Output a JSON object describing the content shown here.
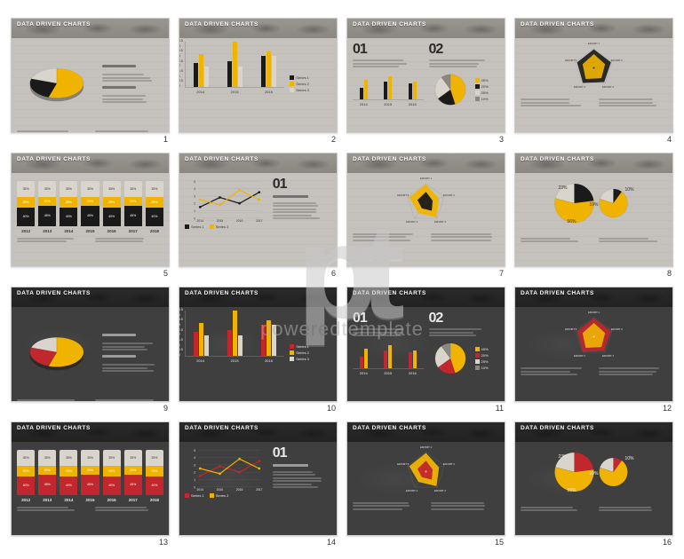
{
  "page_title": "DATA DRIVEN CHARTS",
  "watermark": {
    "logo": "pt",
    "text": "poweredtemplate"
  },
  "palette": {
    "light_accent1": "#f0b400",
    "light_accent2": "#1a1a1a",
    "light_accent3": "#d9d4cc",
    "dark_accent1": "#f0b400",
    "dark_accent2": "#c1272d",
    "dark_accent3": "#d9d4cc",
    "light_text": "#333333",
    "dark_text": "#e8e8e8"
  },
  "slides": [
    {
      "n": 1,
      "theme": "light",
      "type": "pie3d",
      "pie": {
        "slices": [
          {
            "value": 55,
            "color": "#f0b400"
          },
          {
            "value": 25,
            "color": "#1a1a1a"
          },
          {
            "value": 20,
            "color": "#d9d4cc"
          }
        ]
      },
      "headings": [
        "LOREM IPSUM",
        "LOREM IPSUM"
      ]
    },
    {
      "n": 2,
      "theme": "light",
      "type": "grouped-bar",
      "y": {
        "min": 0,
        "max": 4.5,
        "step": 0.5
      },
      "x": [
        "2014",
        "2015",
        "2016"
      ],
      "series": [
        {
          "name": "Series 1",
          "color": "#1a1a1a",
          "values": [
            2.3,
            2.5,
            3.0
          ]
        },
        {
          "name": "Series 2",
          "color": "#f0b400",
          "values": [
            3.2,
            4.4,
            3.5
          ]
        },
        {
          "name": "Series 3",
          "color": "#d9d4cc",
          "values": [
            2.0,
            2.0,
            3.0
          ]
        }
      ]
    },
    {
      "n": 3,
      "theme": "light",
      "type": "combo-bar-pie",
      "nums": [
        "01",
        "02"
      ],
      "bars": {
        "x": [
          "2014",
          "2015",
          "2016"
        ],
        "series": [
          {
            "color": "#1a1a1a",
            "values": [
              2.0,
              3.2,
              2.8
            ]
          },
          {
            "color": "#f0b400",
            "values": [
              3.5,
              4.0,
              3.2
            ]
          }
        ],
        "ymax": 5
      },
      "pie": {
        "slices": [
          {
            "value": 45,
            "color": "#f0b400"
          },
          {
            "value": 20,
            "color": "#1a1a1a"
          },
          {
            "value": 25,
            "color": "#d9d4cc"
          },
          {
            "value": 10,
            "color": "#8c8880"
          }
        ]
      },
      "legend": [
        "45%",
        "20%",
        "25%",
        "10%"
      ]
    },
    {
      "n": 4,
      "theme": "light",
      "type": "radar",
      "axes": [
        "EFFORT 1",
        "EFFORT 2",
        "EFFORT 3",
        "EFFORT 4",
        "EFFORT 5"
      ],
      "layers": [
        {
          "color": "#1a1a1a",
          "r": [
            0.95,
            0.92,
            0.9,
            0.95,
            0.9
          ]
        },
        {
          "color": "#f0b400",
          "r": [
            0.7,
            0.6,
            0.65,
            0.7,
            0.6
          ]
        }
      ]
    },
    {
      "n": 5,
      "theme": "light",
      "type": "stacked-bar",
      "x": [
        "2012",
        "2013",
        "2014",
        "2015",
        "2016",
        "2017",
        "2018"
      ],
      "layers": [
        {
          "color": "#1a1a1a",
          "values": [
            40,
            45,
            40,
            45,
            40,
            45,
            40
          ],
          "label_suffix": "%"
        },
        {
          "color": "#f0b400",
          "values": [
            25,
            20,
            25,
            20,
            25,
            20,
            25
          ],
          "label_suffix": "%"
        },
        {
          "color": "#d9d4cc",
          "values": [
            35,
            35,
            35,
            35,
            35,
            35,
            35
          ],
          "label_suffix": "%"
        }
      ]
    },
    {
      "n": 6,
      "theme": "light",
      "type": "line-plus-text",
      "num": "01",
      "y": {
        "min": 0,
        "max": 5,
        "step": 1
      },
      "x": [
        "2014",
        "2015",
        "2016",
        "2017"
      ],
      "series": [
        {
          "name": "Series 1",
          "color": "#1a1a1a",
          "values": [
            1.5,
            2.8,
            2.0,
            3.5
          ]
        },
        {
          "name": "Series 2",
          "color": "#f0b400",
          "values": [
            2.5,
            1.8,
            3.8,
            2.5
          ]
        }
      ]
    },
    {
      "n": 7,
      "theme": "light",
      "type": "radar-filled",
      "axes": [
        "EFFORT 1",
        "EFFORT 2",
        "EFFORT 3",
        "EFFORT 4",
        "EFFORT 5"
      ],
      "layers": [
        {
          "color": "#f0b400",
          "r": [
            0.95,
            0.7,
            0.92,
            0.65,
            0.9
          ]
        },
        {
          "color": "#1a1a1a",
          "r": [
            0.55,
            0.35,
            0.5,
            0.35,
            0.45
          ]
        }
      ]
    },
    {
      "n": 8,
      "theme": "light",
      "type": "venn-pie",
      "left": {
        "slices": [
          {
            "value": 23,
            "color": "#1a1a1a"
          },
          {
            "value": 56,
            "color": "#f0b400"
          },
          {
            "value": 21,
            "color": "#d9d4cc"
          }
        ],
        "labels": [
          "23%",
          "56%"
        ],
        "mid": "19%"
      },
      "right": {
        "slices": [
          {
            "value": 10,
            "color": "#1a1a1a"
          },
          {
            "value": 70,
            "color": "#f0b400"
          },
          {
            "value": 20,
            "color": "#d9d4cc"
          }
        ],
        "labels": [
          "10%"
        ]
      }
    },
    {
      "n": 9,
      "theme": "dark",
      "type": "pie3d",
      "pie": {
        "slices": [
          {
            "value": 55,
            "color": "#f0b400"
          },
          {
            "value": 25,
            "color": "#c1272d"
          },
          {
            "value": 20,
            "color": "#d9d4cc"
          }
        ]
      },
      "headings": [
        "LOREM IPSUM",
        "LOREM IPSUM"
      ]
    },
    {
      "n": 10,
      "theme": "dark",
      "type": "grouped-bar",
      "y": {
        "min": 0,
        "max": 4.5,
        "step": 0.5
      },
      "x": [
        "2014",
        "2015",
        "2016"
      ],
      "series": [
        {
          "name": "Series 1",
          "color": "#c1272d",
          "values": [
            2.3,
            2.5,
            3.0
          ]
        },
        {
          "name": "Series 2",
          "color": "#f0b400",
          "values": [
            3.2,
            4.4,
            3.5
          ]
        },
        {
          "name": "Series 3",
          "color": "#d9d4cc",
          "values": [
            2.0,
            2.0,
            3.0
          ]
        }
      ]
    },
    {
      "n": 11,
      "theme": "dark",
      "type": "combo-bar-pie",
      "nums": [
        "01",
        "02"
      ],
      "bars": {
        "x": [
          "2014",
          "2015",
          "2016"
        ],
        "series": [
          {
            "color": "#c1272d",
            "values": [
              2.0,
              3.2,
              2.8
            ]
          },
          {
            "color": "#f0b400",
            "values": [
              3.5,
              4.0,
              3.2
            ]
          }
        ],
        "ymax": 5
      },
      "pie": {
        "slices": [
          {
            "value": 45,
            "color": "#f0b400"
          },
          {
            "value": 20,
            "color": "#c1272d"
          },
          {
            "value": 25,
            "color": "#d9d4cc"
          },
          {
            "value": 10,
            "color": "#8c8880"
          }
        ]
      },
      "legend": [
        "45%",
        "20%",
        "25%",
        "10%"
      ]
    },
    {
      "n": 12,
      "theme": "dark",
      "type": "radar",
      "axes": [
        "EFFORT 1",
        "EFFORT 2",
        "EFFORT 3",
        "EFFORT 4",
        "EFFORT 5"
      ],
      "layers": [
        {
          "color": "#c1272d",
          "r": [
            0.95,
            0.92,
            0.9,
            0.95,
            0.9
          ]
        },
        {
          "color": "#f0b400",
          "r": [
            0.7,
            0.6,
            0.65,
            0.7,
            0.6
          ]
        }
      ]
    },
    {
      "n": 13,
      "theme": "dark",
      "type": "stacked-bar",
      "x": [
        "2012",
        "2013",
        "2014",
        "2015",
        "2016",
        "2017",
        "2018"
      ],
      "layers": [
        {
          "color": "#c1272d",
          "values": [
            40,
            45,
            40,
            45,
            40,
            45,
            40
          ],
          "label_suffix": "%"
        },
        {
          "color": "#f0b400",
          "values": [
            25,
            20,
            25,
            20,
            25,
            20,
            25
          ],
          "label_suffix": "%"
        },
        {
          "color": "#d9d4cc",
          "values": [
            35,
            35,
            35,
            35,
            35,
            35,
            35
          ],
          "label_suffix": "%"
        }
      ]
    },
    {
      "n": 14,
      "theme": "dark",
      "type": "line-plus-text",
      "num": "01",
      "y": {
        "min": 0,
        "max": 5,
        "step": 1
      },
      "x": [
        "2014",
        "2015",
        "2016",
        "2017"
      ],
      "series": [
        {
          "name": "Series 1",
          "color": "#c1272d",
          "values": [
            1.5,
            2.8,
            2.0,
            3.5
          ]
        },
        {
          "name": "Series 2",
          "color": "#f0b400",
          "values": [
            2.5,
            1.8,
            3.8,
            2.5
          ]
        }
      ]
    },
    {
      "n": 15,
      "theme": "dark",
      "type": "radar-filled",
      "axes": [
        "EFFORT 1",
        "EFFORT 2",
        "EFFORT 3",
        "EFFORT 4",
        "EFFORT 5"
      ],
      "layers": [
        {
          "color": "#f0b400",
          "r": [
            0.95,
            0.7,
            0.92,
            0.65,
            0.9
          ]
        },
        {
          "color": "#c1272d",
          "r": [
            0.55,
            0.35,
            0.5,
            0.35,
            0.45
          ]
        }
      ]
    },
    {
      "n": 16,
      "theme": "dark",
      "type": "venn-pie",
      "left": {
        "slices": [
          {
            "value": 23,
            "color": "#c1272d"
          },
          {
            "value": 56,
            "color": "#f0b400"
          },
          {
            "value": 21,
            "color": "#d9d4cc"
          }
        ],
        "labels": [
          "23%",
          "56%"
        ],
        "mid": "19%"
      },
      "right": {
        "slices": [
          {
            "value": 10,
            "color": "#c1272d"
          },
          {
            "value": 70,
            "color": "#f0b400"
          },
          {
            "value": 20,
            "color": "#d9d4cc"
          }
        ],
        "labels": [
          "10%"
        ]
      }
    }
  ]
}
